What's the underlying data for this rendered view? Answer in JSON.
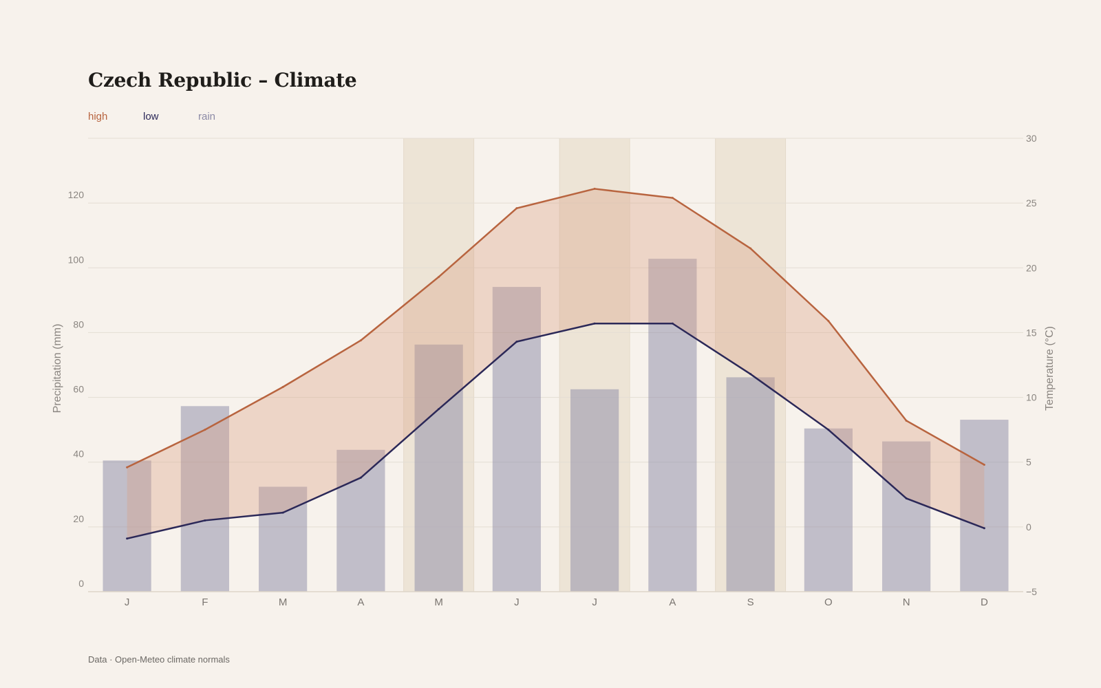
{
  "header": {
    "title": "Czech Republic – Climate"
  },
  "legend": [
    {
      "label": "high",
      "color": "#b8643f"
    },
    {
      "label": "low",
      "color": "#2b2858"
    },
    {
      "label": "rain",
      "color": "#8c8aa6"
    }
  ],
  "footer": {
    "source": "Data · Open-Meteo climate normals"
  },
  "chart_data": {
    "type": "bar",
    "categories": [
      "J",
      "F",
      "M",
      "A",
      "M",
      "J",
      "J",
      "A",
      "S",
      "O",
      "N",
      "D"
    ],
    "series": [
      {
        "name": "rain",
        "type": "bar",
        "axis": "left",
        "values": [
          40.5,
          57.3,
          32.4,
          43.8,
          76.3,
          94.1,
          62.5,
          102.8,
          66.2,
          50.4,
          46.4,
          53.1
        ]
      },
      {
        "name": "high",
        "type": "line",
        "axis": "right",
        "values": [
          4.6,
          7.5,
          10.8,
          14.4,
          19.3,
          24.6,
          26.1,
          25.4,
          21.5,
          15.9,
          8.2,
          4.8
        ]
      },
      {
        "name": "low",
        "type": "line",
        "axis": "right",
        "values": [
          -0.9,
          0.5,
          1.1,
          3.8,
          9.1,
          14.3,
          15.7,
          15.7,
          11.8,
          7.5,
          2.2,
          -0.1
        ]
      }
    ],
    "highlighted_months": [
      4,
      6,
      8
    ],
    "y_left": {
      "label": "Precipitation (mm)",
      "ticks": [
        0,
        20,
        40,
        60,
        80,
        100,
        120
      ],
      "range": [
        0,
        140
      ]
    },
    "y_right": {
      "label": "Temperature (°C)",
      "ticks": [
        -5,
        0,
        5,
        10,
        15,
        20,
        25,
        30
      ],
      "range": [
        -5,
        30
      ]
    },
    "grid": true,
    "legend_position": "top-left"
  }
}
